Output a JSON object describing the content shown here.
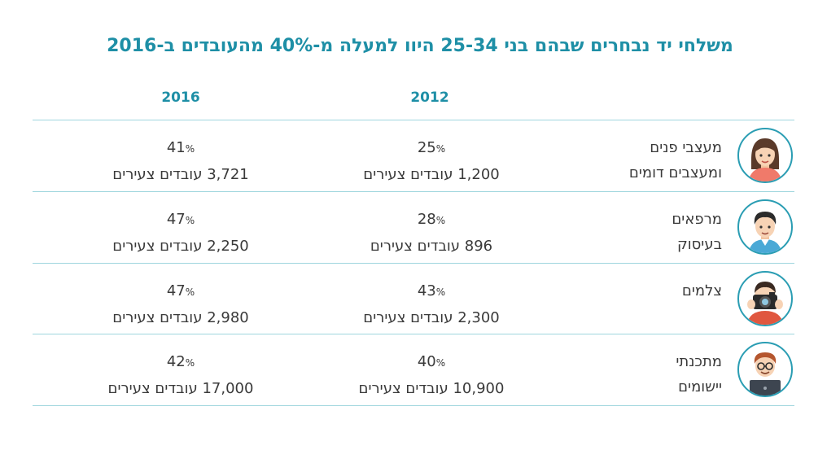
{
  "title": "משלחי יד נבחרים שבהם בני 25-34 היוו למעלה מ-40% מהעובדים ב-2016",
  "columns": {
    "y2012": "2012",
    "y2016": "2016"
  },
  "rows": [
    {
      "profession_line1": "מעצבי פנים",
      "profession_line2": "ומעצבים דומים",
      "avatar": "woman-icon",
      "y2012": {
        "pct": "25",
        "workers": "1,200 עובדים צעירים"
      },
      "y2016": {
        "pct": "41",
        "workers": "3,721 עובדים צעירים"
      }
    },
    {
      "profession_line1": "מרפאים",
      "profession_line2": "בעיסוק",
      "avatar": "man-icon",
      "y2012": {
        "pct": "28",
        "workers": "896 עובדים צעירים"
      },
      "y2016": {
        "pct": "47",
        "workers": "2,250 עובדים צעירים"
      }
    },
    {
      "profession_line1": "צלמים",
      "profession_line2": "",
      "avatar": "photographer-icon",
      "y2012": {
        "pct": "43",
        "workers": "2,300 עובדים צעירים"
      },
      "y2016": {
        "pct": "47",
        "workers": "2,980 עובדים צעירים"
      }
    },
    {
      "profession_line1": "מתכנתי",
      "profession_line2": "יישומים",
      "avatar": "programmer-icon",
      "y2012": {
        "pct": "40",
        "workers": "10,900 עובדים צעירים"
      },
      "y2016": {
        "pct": "42",
        "workers": "17,000 עובדים צעירים"
      }
    }
  ],
  "percent_sign": "%",
  "colors": {
    "accent": "#1e8fa6",
    "rule": "#9fd6de",
    "text": "#3a3a3a"
  }
}
